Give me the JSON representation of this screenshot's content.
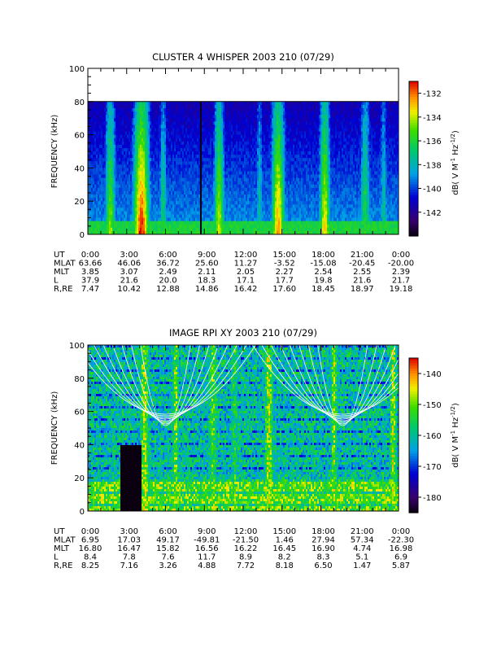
{
  "chart_data": [
    {
      "type": "heatmap",
      "title": "CLUSTER 4 WHISPER 2003 210 (07/29)",
      "ylabel": "FREQUENCY (kHz)",
      "ylim": [
        0,
        100
      ],
      "yticks": [
        "0",
        "20",
        "40",
        "60",
        "80",
        "100"
      ],
      "data_ceiling_khz": 80,
      "colorbar": {
        "label": "dB( V M",
        "label_exp1": "-1",
        "label_mid": " Hz",
        "label_exp2": "-1/2",
        "label_end": ")",
        "range": [
          -144,
          -131
        ],
        "ticks": [
          "-132",
          "-134",
          "-136",
          "-138",
          "-140",
          "-142"
        ]
      },
      "ephemeris": {
        "labels": [
          "UT",
          "MLAT",
          "MLT",
          "L",
          "R,RE"
        ],
        "columns": [
          [
            "0:00",
            "63.66",
            "3.85",
            "37.9",
            "7.47"
          ],
          [
            "3:00",
            "46.06",
            "3.07",
            "21.6",
            "10.42"
          ],
          [
            "6:00",
            "36.72",
            "2.49",
            "20.0",
            "12.88"
          ],
          [
            "9:00",
            "25.60",
            "2.11",
            "18.3",
            "14.86"
          ],
          [
            "12:00",
            "11.27",
            "2.05",
            "17.1",
            "16.42"
          ],
          [
            "15:00",
            "-3.52",
            "2.27",
            "17.7",
            "17.60"
          ],
          [
            "18:00",
            "-15.08",
            "2.54",
            "19.8",
            "18.45"
          ],
          [
            "21:00",
            "-20.45",
            "2.55",
            "21.6",
            "18.97"
          ],
          [
            "0:00",
            "-20.00",
            "2.39",
            "21.7",
            "19.18"
          ]
        ]
      }
    },
    {
      "type": "heatmap",
      "title": "IMAGE RPI XY 2003 210 (07/29)",
      "ylabel": "FREQUENCY (kHz)",
      "ylim": [
        0,
        100
      ],
      "yticks": [
        "0",
        "20",
        "40",
        "60",
        "80",
        "100"
      ],
      "colorbar": {
        "label": "dB( V M",
        "label_exp1": "-1",
        "label_mid": " Hz",
        "label_exp2": "-1/2",
        "label_end": ")",
        "range": [
          -185,
          -135
        ],
        "ticks": [
          "-140",
          "-150",
          "-160",
          "-170",
          "-180"
        ]
      },
      "ephemeris": {
        "labels": [
          "UT",
          "MLAT",
          "MLT",
          "L",
          "R,RE"
        ],
        "columns": [
          [
            "0:00",
            "6.95",
            "16.80",
            "8.4",
            "8.25"
          ],
          [
            "3:00",
            "17.03",
            "16.47",
            "7.8",
            "7.16"
          ],
          [
            "6:00",
            "49.17",
            "15.82",
            "7.6",
            "3.26"
          ],
          [
            "9:00",
            "-49.81",
            "16.56",
            "11.7",
            "4.88"
          ],
          [
            "12:00",
            "-21.50",
            "16.22",
            "8.9",
            "7.72"
          ],
          [
            "15:00",
            "1.46",
            "16.45",
            "8.2",
            "8.18"
          ],
          [
            "18:00",
            "27.94",
            "16.90",
            "8.3",
            "6.50"
          ],
          [
            "21:00",
            "57.34",
            "4.74",
            "5.1",
            "1.47"
          ],
          [
            "0:00",
            "-22.30",
            "16.98",
            "6.9",
            "5.87"
          ]
        ]
      }
    }
  ]
}
